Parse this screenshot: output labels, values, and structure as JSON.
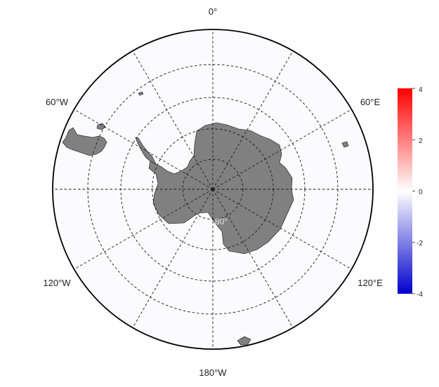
{
  "map": {
    "projection": "south polar stereographic",
    "longitude_labels": [
      {
        "lon": 0,
        "text": "0°"
      },
      {
        "lon": -60,
        "text": "60°W"
      },
      {
        "lon": 60,
        "text": "60°E"
      },
      {
        "lon": -120,
        "text": "120°W"
      },
      {
        "lon": 120,
        "text": "120°E"
      },
      {
        "lon": 180,
        "text": "180°W"
      }
    ],
    "latitude_label": {
      "lat": -80,
      "text": "80°"
    },
    "graticule_longitudes": [
      0,
      30,
      60,
      90,
      120,
      150,
      180,
      210,
      240,
      270,
      300,
      330
    ],
    "graticule_latitudes": [
      -80,
      -70,
      -60,
      -50
    ],
    "outer_latitude": -40,
    "land_color": "#808080",
    "ocean_background": "#fbfbfd"
  },
  "colorbar": {
    "min": -4,
    "max": 4,
    "colors": [
      "#0000cc",
      "#ffffff",
      "#ff0000"
    ],
    "ticks": [
      {
        "value": 4,
        "text": "4"
      },
      {
        "value": 2,
        "text": "2"
      },
      {
        "value": 0,
        "text": "0"
      },
      {
        "value": -2,
        "text": "-2"
      },
      {
        "value": -4,
        "text": "-4"
      }
    ]
  },
  "colors": {
    "positive": "#ff0000",
    "negative": "#0000cc",
    "neutral": "#ffffff"
  }
}
